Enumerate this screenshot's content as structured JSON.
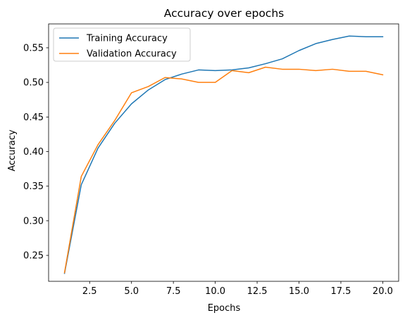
{
  "chart_data": {
    "type": "line",
    "title": "Accuracy over epochs",
    "xlabel": "Epochs",
    "ylabel": "Accuracy",
    "xlim": [
      0.05,
      20.95
    ],
    "ylim": [
      0.2125,
      0.5845
    ],
    "xticks": [
      2.5,
      5.0,
      7.5,
      10.0,
      12.5,
      15.0,
      17.5,
      20.0
    ],
    "xtick_labels": [
      "2.5",
      "5.0",
      "7.5",
      "10.0",
      "12.5",
      "15.0",
      "17.5",
      "20.0"
    ],
    "yticks": [
      0.25,
      0.3,
      0.35,
      0.4,
      0.45,
      0.5,
      0.55
    ],
    "ytick_labels": [
      "0.25",
      "0.30",
      "0.35",
      "0.40",
      "0.45",
      "0.50",
      "0.55"
    ],
    "grid": false,
    "legend_position": "upper-left",
    "x": [
      1,
      2,
      3,
      4,
      5,
      6,
      7,
      8,
      9,
      10,
      11,
      12,
      13,
      14,
      15,
      16,
      17,
      18,
      19,
      20
    ],
    "series": [
      {
        "name": "Training Accuracy",
        "color": "#1f77b4",
        "values": [
          0.224,
          0.352,
          0.405,
          0.441,
          0.469,
          0.489,
          0.504,
          0.512,
          0.518,
          0.517,
          0.518,
          0.521,
          0.527,
          0.534,
          0.546,
          0.556,
          0.562,
          0.567,
          0.566,
          0.566
        ]
      },
      {
        "name": "Validation Accuracy",
        "color": "#ff7f0e",
        "values": [
          0.225,
          0.364,
          0.41,
          0.445,
          0.485,
          0.494,
          0.507,
          0.505,
          0.5,
          0.5,
          0.517,
          0.514,
          0.522,
          0.519,
          0.519,
          0.517,
          0.519,
          0.516,
          0.516,
          0.511
        ]
      }
    ]
  }
}
